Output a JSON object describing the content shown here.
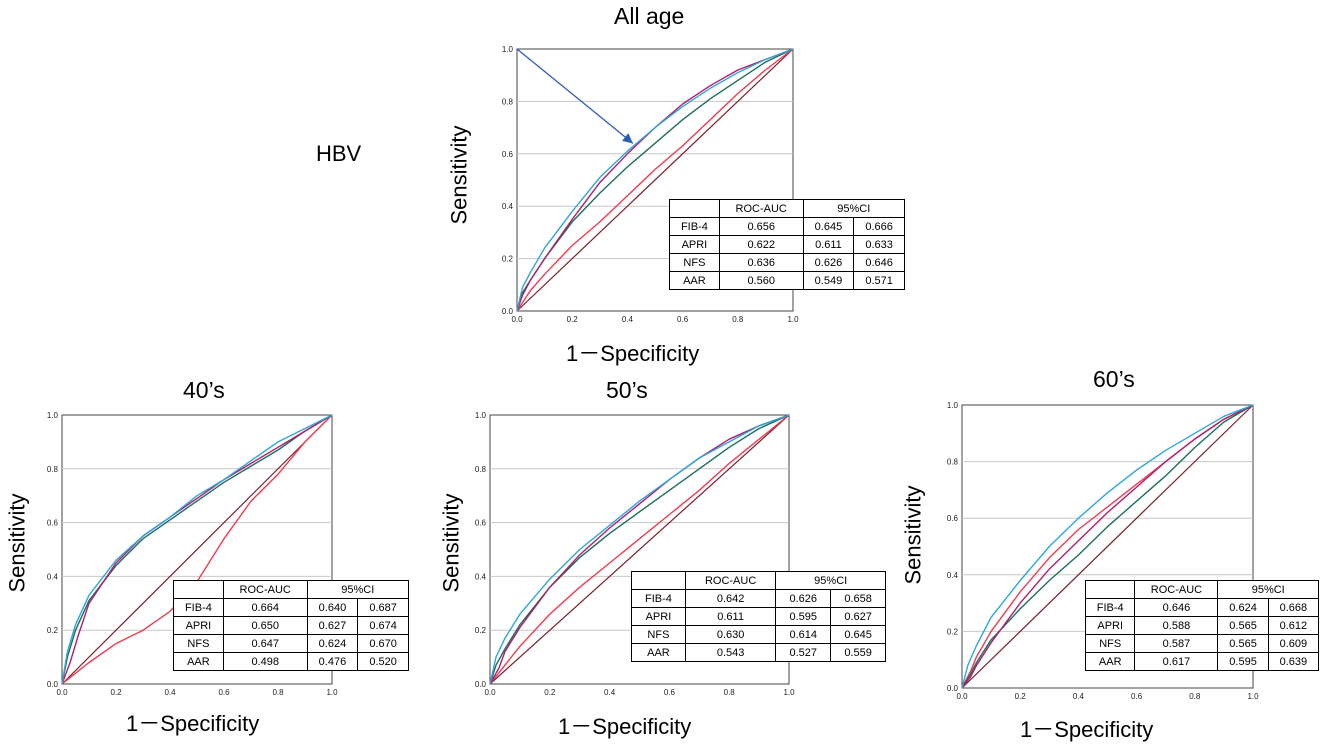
{
  "group_label": "HBV",
  "x_axis_label": "1－Specificity",
  "y_axis_label": "Sensitivity",
  "table_header": {
    "auc": "ROC-AUC",
    "ci": "95%CI"
  },
  "series_colors": {
    "FIB-4": "#2fa6dc",
    "APRI": "#b01f6c",
    "NFS": "#1d6e5e",
    "AAR": "#ef3b52",
    "reference": "#7a1f2a",
    "arrow": "#2e5db5"
  },
  "chart_data": [
    {
      "type": "line",
      "title": "All age",
      "xlabel": "1－Specificity",
      "ylabel": "Sensitivity",
      "xlim": [
        0,
        1
      ],
      "ylim": [
        0,
        1
      ],
      "ticks": [
        "0.0",
        "0.2",
        "0.4",
        "0.6",
        "0.8",
        "1.0"
      ],
      "grid": "horizontal",
      "series": [
        {
          "name": "FIB-4",
          "auc": 0.656,
          "points": [
            [
              0,
              0
            ],
            [
              0.02,
              0.09
            ],
            [
              0.05,
              0.15
            ],
            [
              0.1,
              0.24
            ],
            [
              0.2,
              0.38
            ],
            [
              0.3,
              0.51
            ],
            [
              0.4,
              0.61
            ],
            [
              0.5,
              0.7
            ],
            [
              0.6,
              0.78
            ],
            [
              0.7,
              0.85
            ],
            [
              0.8,
              0.91
            ],
            [
              0.9,
              0.96
            ],
            [
              1,
              1
            ]
          ]
        },
        {
          "name": "APRI",
          "auc": 0.622,
          "points": [
            [
              0,
              0
            ],
            [
              0.02,
              0.06
            ],
            [
              0.05,
              0.12
            ],
            [
              0.1,
              0.2
            ],
            [
              0.2,
              0.35
            ],
            [
              0.3,
              0.49
            ],
            [
              0.4,
              0.6
            ],
            [
              0.5,
              0.7
            ],
            [
              0.6,
              0.79
            ],
            [
              0.7,
              0.86
            ],
            [
              0.8,
              0.92
            ],
            [
              0.9,
              0.96
            ],
            [
              1,
              1
            ]
          ]
        },
        {
          "name": "NFS",
          "auc": 0.636,
          "points": [
            [
              0,
              0
            ],
            [
              0.02,
              0.07
            ],
            [
              0.05,
              0.12
            ],
            [
              0.1,
              0.2
            ],
            [
              0.2,
              0.34
            ],
            [
              0.3,
              0.45
            ],
            [
              0.4,
              0.55
            ],
            [
              0.5,
              0.64
            ],
            [
              0.6,
              0.73
            ],
            [
              0.7,
              0.81
            ],
            [
              0.8,
              0.88
            ],
            [
              0.9,
              0.95
            ],
            [
              1,
              1
            ]
          ]
        },
        {
          "name": "AAR",
          "auc": 0.56,
          "points": [
            [
              0,
              0
            ],
            [
              0.05,
              0.08
            ],
            [
              0.1,
              0.14
            ],
            [
              0.2,
              0.25
            ],
            [
              0.3,
              0.34
            ],
            [
              0.4,
              0.44
            ],
            [
              0.5,
              0.54
            ],
            [
              0.6,
              0.63
            ],
            [
              0.7,
              0.73
            ],
            [
              0.8,
              0.83
            ],
            [
              0.9,
              0.92
            ],
            [
              1,
              1
            ]
          ]
        }
      ],
      "arrow": {
        "from": [
          0,
          1
        ],
        "to": [
          0.42,
          0.64
        ]
      },
      "table": [
        {
          "name": "FIB-4",
          "auc": "0.656",
          "ci_low": "0.645",
          "ci_high": "0.666"
        },
        {
          "name": "APRI",
          "auc": "0.622",
          "ci_low": "0.611",
          "ci_high": "0.633"
        },
        {
          "name": "NFS",
          "auc": "0.636",
          "ci_low": "0.626",
          "ci_high": "0.646"
        },
        {
          "name": "AAR",
          "auc": "0.560",
          "ci_low": "0.549",
          "ci_high": "0.571"
        }
      ]
    },
    {
      "type": "line",
      "title": "40’s",
      "xlabel": "1－Specificity",
      "ylabel": "Sensitivity",
      "xlim": [
        0,
        1
      ],
      "ylim": [
        0,
        1
      ],
      "ticks": [
        "0.0",
        "0.2",
        "0.4",
        "0.6",
        "0.8",
        "1.0"
      ],
      "grid": "horizontal",
      "series": [
        {
          "name": "FIB-4",
          "auc": 0.664,
          "points": [
            [
              0,
              0
            ],
            [
              0.02,
              0.12
            ],
            [
              0.05,
              0.22
            ],
            [
              0.1,
              0.33
            ],
            [
              0.2,
              0.46
            ],
            [
              0.3,
              0.55
            ],
            [
              0.4,
              0.62
            ],
            [
              0.5,
              0.7
            ],
            [
              0.6,
              0.76
            ],
            [
              0.7,
              0.83
            ],
            [
              0.8,
              0.9
            ],
            [
              0.9,
              0.95
            ],
            [
              1,
              1
            ]
          ]
        },
        {
          "name": "APRI",
          "auc": 0.65,
          "points": [
            [
              0,
              0
            ],
            [
              0.03,
              0.08
            ],
            [
              0.06,
              0.18
            ],
            [
              0.1,
              0.3
            ],
            [
              0.2,
              0.45
            ],
            [
              0.3,
              0.55
            ],
            [
              0.4,
              0.62
            ],
            [
              0.5,
              0.69
            ],
            [
              0.6,
              0.76
            ],
            [
              0.7,
              0.82
            ],
            [
              0.8,
              0.88
            ],
            [
              0.9,
              0.94
            ],
            [
              1,
              1
            ]
          ]
        },
        {
          "name": "NFS",
          "auc": 0.647,
          "points": [
            [
              0,
              0
            ],
            [
              0.02,
              0.1
            ],
            [
              0.05,
              0.2
            ],
            [
              0.1,
              0.31
            ],
            [
              0.2,
              0.44
            ],
            [
              0.3,
              0.54
            ],
            [
              0.4,
              0.61
            ],
            [
              0.5,
              0.68
            ],
            [
              0.6,
              0.75
            ],
            [
              0.7,
              0.81
            ],
            [
              0.8,
              0.87
            ],
            [
              0.9,
              0.94
            ],
            [
              1,
              1
            ]
          ]
        },
        {
          "name": "AAR",
          "auc": 0.498,
          "points": [
            [
              0,
              0
            ],
            [
              0.05,
              0.04
            ],
            [
              0.1,
              0.08
            ],
            [
              0.2,
              0.15
            ],
            [
              0.3,
              0.2
            ],
            [
              0.4,
              0.27
            ],
            [
              0.5,
              0.38
            ],
            [
              0.6,
              0.54
            ],
            [
              0.7,
              0.68
            ],
            [
              0.8,
              0.78
            ],
            [
              0.9,
              0.9
            ],
            [
              1,
              1
            ]
          ]
        }
      ],
      "table": [
        {
          "name": "FIB-4",
          "auc": "0.664",
          "ci_low": "0.640",
          "ci_high": "0.687"
        },
        {
          "name": "APRI",
          "auc": "0.650",
          "ci_low": "0.627",
          "ci_high": "0.674"
        },
        {
          "name": "NFS",
          "auc": "0.647",
          "ci_low": "0.624",
          "ci_high": "0.670"
        },
        {
          "name": "AAR",
          "auc": "0.498",
          "ci_low": "0.476",
          "ci_high": "0.520"
        }
      ]
    },
    {
      "type": "line",
      "title": "50’s",
      "xlabel": "1－Specificity",
      "ylabel": "Sensitivity",
      "xlim": [
        0,
        1
      ],
      "ylim": [
        0,
        1
      ],
      "ticks": [
        "0.0",
        "0.2",
        "0.4",
        "0.6",
        "0.8",
        "1.0"
      ],
      "grid": "horizontal",
      "series": [
        {
          "name": "FIB-4",
          "auc": 0.642,
          "points": [
            [
              0,
              0
            ],
            [
              0.02,
              0.1
            ],
            [
              0.05,
              0.17
            ],
            [
              0.1,
              0.26
            ],
            [
              0.2,
              0.39
            ],
            [
              0.3,
              0.5
            ],
            [
              0.4,
              0.59
            ],
            [
              0.5,
              0.68
            ],
            [
              0.6,
              0.76
            ],
            [
              0.7,
              0.84
            ],
            [
              0.8,
              0.9
            ],
            [
              0.9,
              0.96
            ],
            [
              1,
              1
            ]
          ]
        },
        {
          "name": "APRI",
          "auc": 0.611,
          "points": [
            [
              0,
              0
            ],
            [
              0.03,
              0.06
            ],
            [
              0.05,
              0.12
            ],
            [
              0.1,
              0.21
            ],
            [
              0.2,
              0.36
            ],
            [
              0.3,
              0.48
            ],
            [
              0.4,
              0.58
            ],
            [
              0.5,
              0.67
            ],
            [
              0.6,
              0.76
            ],
            [
              0.7,
              0.84
            ],
            [
              0.8,
              0.91
            ],
            [
              0.9,
              0.96
            ],
            [
              1,
              1
            ]
          ]
        },
        {
          "name": "NFS",
          "auc": 0.63,
          "points": [
            [
              0,
              0
            ],
            [
              0.02,
              0.07
            ],
            [
              0.05,
              0.13
            ],
            [
              0.1,
              0.22
            ],
            [
              0.2,
              0.36
            ],
            [
              0.3,
              0.47
            ],
            [
              0.4,
              0.56
            ],
            [
              0.5,
              0.64
            ],
            [
              0.6,
              0.72
            ],
            [
              0.7,
              0.8
            ],
            [
              0.8,
              0.88
            ],
            [
              0.9,
              0.95
            ],
            [
              1,
              1
            ]
          ]
        },
        {
          "name": "AAR",
          "auc": 0.543,
          "points": [
            [
              0,
              0
            ],
            [
              0.05,
              0.07
            ],
            [
              0.1,
              0.14
            ],
            [
              0.2,
              0.26
            ],
            [
              0.3,
              0.36
            ],
            [
              0.4,
              0.45
            ],
            [
              0.5,
              0.54
            ],
            [
              0.6,
              0.63
            ],
            [
              0.7,
              0.72
            ],
            [
              0.8,
              0.82
            ],
            [
              0.9,
              0.91
            ],
            [
              1,
              1
            ]
          ]
        }
      ],
      "table": [
        {
          "name": "FIB-4",
          "auc": "0.642",
          "ci_low": "0.626",
          "ci_high": "0.658"
        },
        {
          "name": "APRI",
          "auc": "0.611",
          "ci_low": "0.595",
          "ci_high": "0.627"
        },
        {
          "name": "NFS",
          "auc": "0.630",
          "ci_low": "0.614",
          "ci_high": "0.645"
        },
        {
          "name": "AAR",
          "auc": "0.543",
          "ci_low": "0.527",
          "ci_high": "0.559"
        }
      ]
    },
    {
      "type": "line",
      "title": "60’s",
      "xlabel": "1－Specificity",
      "ylabel": "Sensitivity",
      "xlim": [
        0,
        1
      ],
      "ylim": [
        0,
        1
      ],
      "ticks": [
        "0.0",
        "0.2",
        "0.4",
        "0.6",
        "0.8",
        "1.0"
      ],
      "grid": "horizontal",
      "series": [
        {
          "name": "FIB-4",
          "auc": 0.646,
          "points": [
            [
              0,
              0
            ],
            [
              0.02,
              0.08
            ],
            [
              0.05,
              0.15
            ],
            [
              0.1,
              0.25
            ],
            [
              0.2,
              0.38
            ],
            [
              0.3,
              0.5
            ],
            [
              0.4,
              0.6
            ],
            [
              0.5,
              0.69
            ],
            [
              0.6,
              0.77
            ],
            [
              0.7,
              0.84
            ],
            [
              0.8,
              0.9
            ],
            [
              0.9,
              0.96
            ],
            [
              1,
              1
            ]
          ]
        },
        {
          "name": "APRI",
          "auc": 0.588,
          "points": [
            [
              0,
              0
            ],
            [
              0.03,
              0.04
            ],
            [
              0.05,
              0.08
            ],
            [
              0.1,
              0.16
            ],
            [
              0.2,
              0.3
            ],
            [
              0.3,
              0.42
            ],
            [
              0.4,
              0.52
            ],
            [
              0.5,
              0.62
            ],
            [
              0.6,
              0.71
            ],
            [
              0.7,
              0.8
            ],
            [
              0.8,
              0.88
            ],
            [
              0.9,
              0.95
            ],
            [
              1,
              1
            ]
          ]
        },
        {
          "name": "NFS",
          "auc": 0.587,
          "points": [
            [
              0,
              0
            ],
            [
              0.03,
              0.05
            ],
            [
              0.05,
              0.09
            ],
            [
              0.1,
              0.17
            ],
            [
              0.2,
              0.28
            ],
            [
              0.3,
              0.38
            ],
            [
              0.4,
              0.47
            ],
            [
              0.5,
              0.57
            ],
            [
              0.6,
              0.66
            ],
            [
              0.7,
              0.75
            ],
            [
              0.8,
              0.85
            ],
            [
              0.9,
              0.94
            ],
            [
              1,
              1
            ]
          ]
        },
        {
          "name": "AAR",
          "auc": 0.617,
          "points": [
            [
              0,
              0
            ],
            [
              0.03,
              0.06
            ],
            [
              0.05,
              0.11
            ],
            [
              0.1,
              0.2
            ],
            [
              0.2,
              0.34
            ],
            [
              0.3,
              0.46
            ],
            [
              0.4,
              0.56
            ],
            [
              0.5,
              0.64
            ],
            [
              0.6,
              0.72
            ],
            [
              0.7,
              0.8
            ],
            [
              0.8,
              0.88
            ],
            [
              0.9,
              0.95
            ],
            [
              1,
              1
            ]
          ]
        }
      ],
      "table": [
        {
          "name": "FIB-4",
          "auc": "0.646",
          "ci_low": "0.624",
          "ci_high": "0.668"
        },
        {
          "name": "APRI",
          "auc": "0.588",
          "ci_low": "0.565",
          "ci_high": "0.612"
        },
        {
          "name": "NFS",
          "auc": "0.587",
          "ci_low": "0.565",
          "ci_high": "0.609"
        },
        {
          "name": "AAR",
          "auc": "0.617",
          "ci_low": "0.595",
          "ci_high": "0.639"
        }
      ]
    }
  ]
}
